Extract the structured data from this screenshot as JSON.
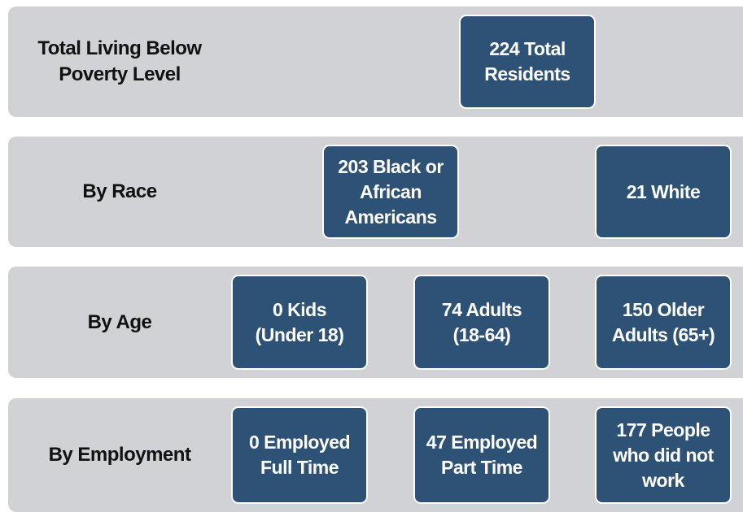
{
  "rows": [
    {
      "label": [
        "Total Living Below",
        "Poverty Level"
      ],
      "boxes": [
        [
          "224 Total",
          "Residents"
        ]
      ]
    },
    {
      "label": [
        "By Race"
      ],
      "boxes": [
        [
          "203 Black or",
          "African",
          "Americans"
        ],
        [
          "21 White"
        ]
      ]
    },
    {
      "label": [
        "By Age"
      ],
      "boxes": [
        [
          "0 Kids",
          "(Under 18)"
        ],
        [
          "74 Adults",
          "(18-64)"
        ],
        [
          "150 Older",
          "Adults (65+)"
        ]
      ]
    },
    {
      "label": [
        "By Employment"
      ],
      "boxes": [
        [
          "0 Employed",
          "Full Time"
        ],
        [
          "47 Employed",
          "Part Time"
        ],
        [
          "177 People",
          "who did not",
          "work"
        ]
      ]
    }
  ]
}
